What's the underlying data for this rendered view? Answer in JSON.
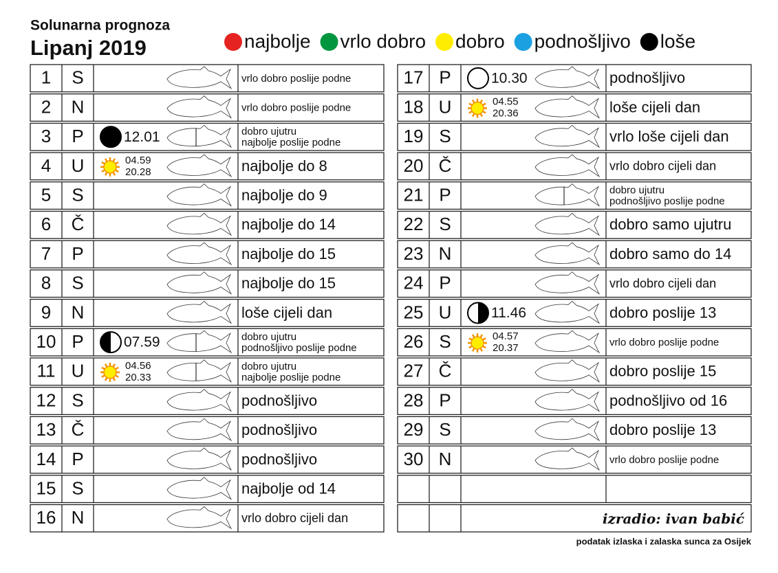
{
  "header": {
    "title": "Solunarna prognoza",
    "subtitle": "Lipanj 2019"
  },
  "legend": [
    {
      "label": "najbolje",
      "color": "#e52421"
    },
    {
      "label": "vrlo dobro",
      "color": "#00963f"
    },
    {
      "label": "dobro",
      "color": "#ffed00"
    },
    {
      "label": "podnošljivo",
      "color": "#1ba1e2"
    },
    {
      "label": "loše",
      "color": "#000000"
    }
  ],
  "days": [
    {
      "day": "1",
      "weekday": "S",
      "fish": [
        "#00963f"
      ],
      "text": [
        "vrlo dobro poslije podne"
      ],
      "text_size": "small"
    },
    {
      "day": "2",
      "weekday": "N",
      "sunday": true,
      "fish": [
        "#00963f"
      ],
      "text": [
        "vrlo dobro poslije podne"
      ],
      "text_size": "small"
    },
    {
      "day": "3",
      "weekday": "P",
      "moon": {
        "phase": "new",
        "time": "12.01"
      },
      "fish": [
        "#ffed00",
        "#e52421"
      ],
      "text": [
        "dobro ujutru",
        "najbolje poslije podne"
      ],
      "text_size": "small"
    },
    {
      "day": "4",
      "weekday": "U",
      "sun": {
        "rise": "04.59",
        "set": "20.28"
      },
      "fish": [
        "#e52421"
      ],
      "text": [
        "najbolje do 8"
      ],
      "text_size": "large"
    },
    {
      "day": "5",
      "weekday": "S",
      "fish": [
        "#e52421"
      ],
      "text": [
        "najbolje do 9"
      ],
      "text_size": "large"
    },
    {
      "day": "6",
      "weekday": "Č",
      "fish": [
        "#e52421"
      ],
      "text": [
        "najbolje do 14"
      ],
      "text_size": "large"
    },
    {
      "day": "7",
      "weekday": "P",
      "fish": [
        "#e52421"
      ],
      "text": [
        "najbolje do 15"
      ],
      "text_size": "large"
    },
    {
      "day": "8",
      "weekday": "S",
      "fish": [
        "#e52421"
      ],
      "text": [
        "najbolje do 15"
      ],
      "text_size": "large"
    },
    {
      "day": "9",
      "weekday": "N",
      "sunday": true,
      "fish": [
        "#000000"
      ],
      "text": [
        "loše cijeli dan"
      ],
      "text_size": "large"
    },
    {
      "day": "10",
      "weekday": "P",
      "moon": {
        "phase": "first-quarter",
        "time": "07.59"
      },
      "fish": [
        "#ffed00",
        "#1ba1e2"
      ],
      "text": [
        "dobro ujutru",
        "podnošljivo poslije podne"
      ],
      "text_size": "small"
    },
    {
      "day": "11",
      "weekday": "U",
      "sun": {
        "rise": "04.56",
        "set": "20.33"
      },
      "fish": [
        "#ffed00",
        "#e52421"
      ],
      "text": [
        "dobro ujutru",
        "najbolje poslije podne"
      ],
      "text_size": "small"
    },
    {
      "day": "12",
      "weekday": "S",
      "fish": [
        "#1ba1e2"
      ],
      "text": [
        "podnošljivo"
      ],
      "text_size": "large"
    },
    {
      "day": "13",
      "weekday": "Č",
      "fish": [
        "#1ba1e2"
      ],
      "text": [
        "podnošljivo"
      ],
      "text_size": "large"
    },
    {
      "day": "14",
      "weekday": "P",
      "fish": [
        "#1ba1e2"
      ],
      "text": [
        "podnošljivo"
      ],
      "text_size": "large"
    },
    {
      "day": "15",
      "weekday": "S",
      "fish": [
        "#e52421"
      ],
      "text": [
        "najbolje od 14"
      ],
      "text_size": "large"
    },
    {
      "day": "16",
      "weekday": "N",
      "sunday": true,
      "fish": [
        "#00963f"
      ],
      "text": [
        "vrlo dobro cijeli dan"
      ],
      "text_size": "medium"
    },
    {
      "day": "17",
      "weekday": "P",
      "moon": {
        "phase": "full",
        "time": "10.30"
      },
      "fish": [
        "#1ba1e2"
      ],
      "text": [
        "podnošljivo"
      ],
      "text_size": "large"
    },
    {
      "day": "18",
      "weekday": "U",
      "sun": {
        "rise": "04.55",
        "set": "20.36"
      },
      "fish": [
        "#000000"
      ],
      "text": [
        "loše cijeli dan"
      ],
      "text_size": "large"
    },
    {
      "day": "19",
      "weekday": "S",
      "fish": [
        "#000000"
      ],
      "text": [
        "vrlo loše cijeli dan"
      ],
      "text_size": "large"
    },
    {
      "day": "20",
      "weekday": "Č",
      "fish": [
        "#00963f"
      ],
      "text": [
        "vrlo dobro cijeli dan"
      ],
      "text_size": "medium"
    },
    {
      "day": "21",
      "weekday": "P",
      "fish": [
        "#ffed00",
        "#1ba1e2"
      ],
      "text": [
        "dobro ujutru",
        "podnošljivo poslije podne"
      ],
      "text_size": "small"
    },
    {
      "day": "22",
      "weekday": "S",
      "fish": [
        "#ffed00"
      ],
      "text": [
        "dobro samo ujutru"
      ],
      "text_size": "large"
    },
    {
      "day": "23",
      "weekday": "N",
      "sunday": true,
      "fish": [
        "#ffed00"
      ],
      "text": [
        "dobro samo do 14"
      ],
      "text_size": "large"
    },
    {
      "day": "24",
      "weekday": "P",
      "fish": [
        "#00963f"
      ],
      "text": [
        "vrlo dobro cijeli dan"
      ],
      "text_size": "medium"
    },
    {
      "day": "25",
      "weekday": "U",
      "moon": {
        "phase": "last-quarter",
        "time": "11.46"
      },
      "fish": [
        "#ffed00"
      ],
      "text": [
        "dobro poslije 13"
      ],
      "text_size": "large"
    },
    {
      "day": "26",
      "weekday": "S",
      "sun": {
        "rise": "04.57",
        "set": "20.37"
      },
      "fish": [
        "#00963f"
      ],
      "text": [
        "vrlo dobro poslije podne"
      ],
      "text_size": "small"
    },
    {
      "day": "27",
      "weekday": "Č",
      "fish": [
        "#ffed00"
      ],
      "text": [
        "dobro poslije 15"
      ],
      "text_size": "large"
    },
    {
      "day": "28",
      "weekday": "P",
      "fish": [
        "#1ba1e2"
      ],
      "text": [
        "podnošljivo od 16"
      ],
      "text_size": "large"
    },
    {
      "day": "29",
      "weekday": "S",
      "fish": [
        "#ffed00"
      ],
      "text": [
        "dobro poslije 13"
      ],
      "text_size": "large"
    },
    {
      "day": "30",
      "weekday": "N",
      "sunday": true,
      "fish": [
        "#00963f"
      ],
      "text": [
        "vrlo dobro poslije podne"
      ],
      "text_size": "small"
    }
  ],
  "footer": {
    "signature": "izradio: ivan babić",
    "note": "podatak izlaska i zalaska sunca za Osijek"
  }
}
